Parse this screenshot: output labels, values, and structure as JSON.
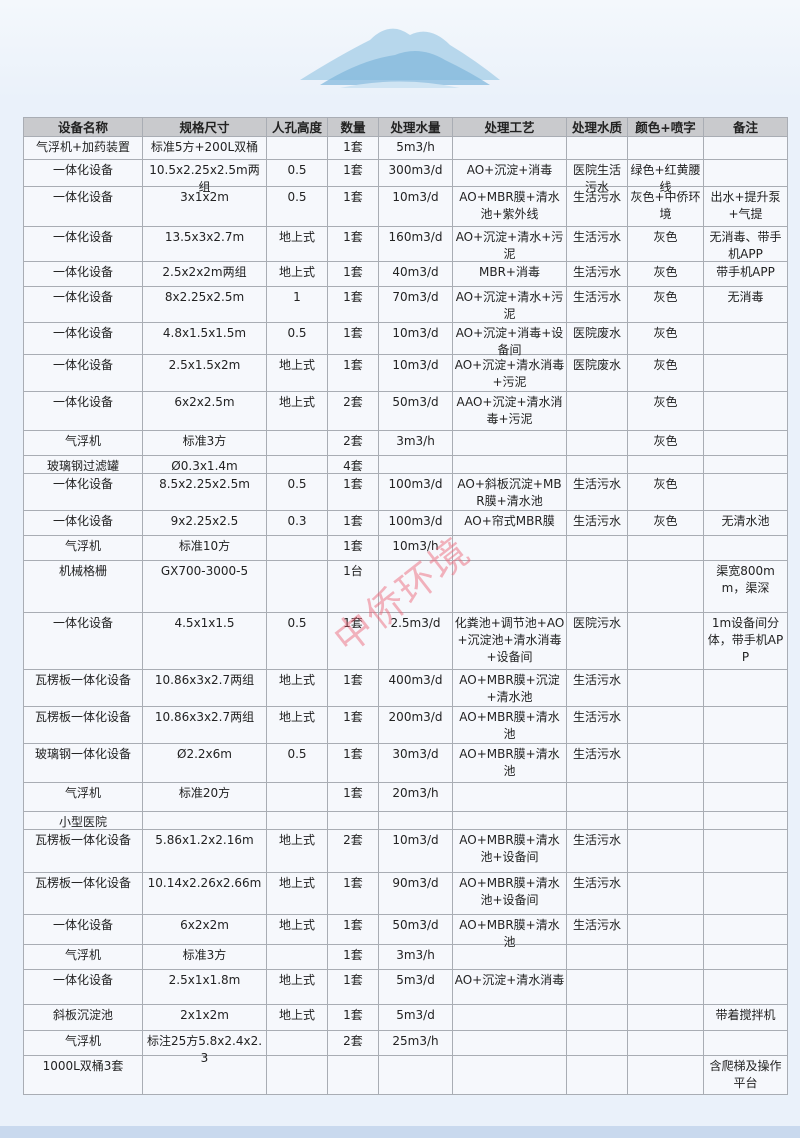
{
  "watermark": "中侨环境",
  "colors": {
    "background": "#eaf1fa",
    "header": "#c9cacd",
    "watermark": "#eb5a6e"
  },
  "table": {
    "headers": [
      "设备名称",
      "规格尺寸",
      "人孔高度",
      "数量",
      "处理水量",
      "处理工艺",
      "处理水质",
      "颜色+喷字",
      "备注"
    ],
    "rows": [
      [
        "气浮机+加药装置",
        "标准5方+200L双桶",
        "",
        "1套",
        "5m3/h",
        "",
        "",
        "",
        ""
      ],
      [
        "一体化设备",
        "10.5x2.25x2.5m两组",
        "0.5",
        "1套",
        "300m3/d",
        "AO+沉淀+消毒",
        "医院生活污水",
        "绿色+红黄腰线",
        ""
      ],
      [
        "一体化设备",
        "3x1x2m",
        "0.5",
        "1套",
        "10m3/d",
        "AO+MBR膜+清水池+紫外线",
        "生活污水",
        "灰色+中侨环境",
        "出水+提升泵+气提"
      ],
      [
        "一体化设备",
        "13.5x3x2.7m",
        "地上式",
        "1套",
        "160m3/d",
        "AO+沉淀+清水+污泥",
        "生活污水",
        "灰色",
        "无消毒、带手机APP"
      ],
      [
        "一体化设备",
        "2.5x2x2m两组",
        "地上式",
        "1套",
        "40m3/d",
        "MBR+消毒",
        "生活污水",
        "灰色",
        "带手机APP"
      ],
      [
        "一体化设备",
        "8x2.25x2.5m",
        "1",
        "1套",
        "70m3/d",
        "AO+沉淀+清水+污泥",
        "生活污水",
        "灰色",
        "无消毒"
      ],
      [
        "一体化设备",
        "4.8x1.5x1.5m",
        "0.5",
        "1套",
        "10m3/d",
        "AO+沉淀+消毒+设备间",
        "医院废水",
        "灰色",
        ""
      ],
      [
        "一体化设备",
        "2.5x1.5x2m",
        "地上式",
        "1套",
        "10m3/d",
        "AO+沉淀+清水消毒+污泥",
        "医院废水",
        "灰色",
        ""
      ],
      [
        "一体化设备",
        "6x2x2.5m",
        "地上式",
        "2套",
        "50m3/d",
        "AAO+沉淀+清水消毒+污泥",
        "",
        "灰色",
        ""
      ],
      [
        "气浮机",
        "标准3方",
        "",
        "2套",
        "3m3/h",
        "",
        "",
        "灰色",
        ""
      ],
      [
        "玻璃钢过滤罐",
        "Ø0.3x1.4m",
        "",
        "4套",
        "",
        "",
        "",
        "",
        ""
      ],
      [
        "一体化设备",
        "8.5x2.25x2.5m",
        "0.5",
        "1套",
        "100m3/d",
        "AO+斜板沉淀+MBR膜+清水池",
        "生活污水",
        "灰色",
        ""
      ],
      [
        "一体化设备",
        "9x2.25x2.5",
        "0.3",
        "1套",
        "100m3/d",
        "AO+帘式MBR膜",
        "生活污水",
        "灰色",
        "无清水池"
      ],
      [
        "气浮机",
        "标准10方",
        "",
        "1套",
        "10m3/h",
        "",
        "",
        "",
        ""
      ],
      [
        "机械格栅",
        "GX700-3000-5",
        "",
        "1台",
        "",
        "",
        "",
        "",
        "渠宽800mm，渠深"
      ],
      [
        "一体化设备",
        "4.5x1x1.5",
        "0.5",
        "1套",
        "2.5m3/d",
        "化粪池+调节池+AO+沉淀池+清水消毒+设备间",
        "医院污水",
        "",
        "1m设备间分体，带手机APP"
      ],
      [
        "瓦楞板一体化设备",
        "10.86x3x2.7两组",
        "地上式",
        "1套",
        "400m3/d",
        "AO+MBR膜+沉淀+清水池",
        "生活污水",
        "",
        ""
      ],
      [
        "瓦楞板一体化设备",
        "10.86x3x2.7两组",
        "地上式",
        "1套",
        "200m3/d",
        "AO+MBR膜+清水池",
        "生活污水",
        "",
        ""
      ],
      [
        "玻璃钢一体化设备",
        "Ø2.2x6m",
        "0.5",
        "1套",
        "30m3/d",
        "AO+MBR膜+清水池",
        "生活污水",
        "",
        ""
      ],
      [
        "气浮机",
        "标准20方",
        "",
        "1套",
        "20m3/h",
        "",
        "",
        "",
        ""
      ],
      [
        "小型医院",
        "",
        "",
        "",
        "",
        "",
        "",
        "",
        ""
      ],
      [
        "瓦楞板一体化设备",
        "5.86x1.2x2.16m",
        "地上式",
        "2套",
        "10m3/d",
        "AO+MBR膜+清水池+设备间",
        "生活污水",
        "",
        ""
      ],
      [
        "瓦楞板一体化设备",
        "10.14x2.26x2.66m",
        "地上式",
        "1套",
        "90m3/d",
        "AO+MBR膜+清水池+设备间",
        "生活污水",
        "",
        ""
      ],
      [
        "一体化设备",
        "6x2x2m",
        "地上式",
        "1套",
        "50m3/d",
        "AO+MBR膜+清水池",
        "生活污水",
        "",
        ""
      ],
      [
        "气浮机",
        "标准3方",
        "",
        "1套",
        "3m3/h",
        "",
        "",
        "",
        ""
      ],
      [
        "一体化设备",
        "2.5x1x1.8m",
        "地上式",
        "1套",
        "5m3/d",
        "AO+沉淀+清水消毒",
        "",
        "",
        ""
      ],
      [
        "斜板沉淀池",
        "2x1x2m",
        "地上式",
        "1套",
        "5m3/d",
        "",
        "",
        "",
        "带着搅拌机"
      ],
      [
        "气浮机",
        "标注25方5.8x2.4x2.3",
        "",
        "2套",
        "25m3/h",
        "",
        "",
        "",
        ""
      ],
      [
        "1000L双桶3套",
        "",
        "",
        "",
        "",
        "",
        "",
        "",
        "含爬梯及操作平台"
      ]
    ]
  }
}
